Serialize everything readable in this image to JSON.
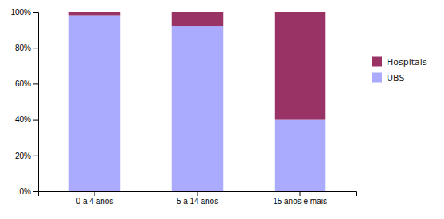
{
  "chart_data": {
    "type": "bar",
    "stacked": true,
    "categories": [
      "0 a 4 anos",
      "5 a 14 anos",
      "15 anos e mais"
    ],
    "series": [
      {
        "name": "UBS",
        "color": "#aaaaff",
        "values": [
          0.98,
          0.92,
          0.4
        ]
      },
      {
        "name": "Hospitais",
        "color": "#993366",
        "values": [
          0.02,
          0.08,
          0.6
        ]
      }
    ],
    "ylim": [
      0,
      1.0
    ],
    "yticks": [
      {
        "value": 0.0,
        "label": "0%"
      },
      {
        "value": 0.2,
        "label": "20%"
      },
      {
        "value": 0.4,
        "label": "40%"
      },
      {
        "value": 0.6,
        "label": "60%"
      },
      {
        "value": 0.8,
        "label": "80%"
      },
      {
        "value": 1.0,
        "label": "100%"
      }
    ],
    "grid": false,
    "legend": "right"
  }
}
